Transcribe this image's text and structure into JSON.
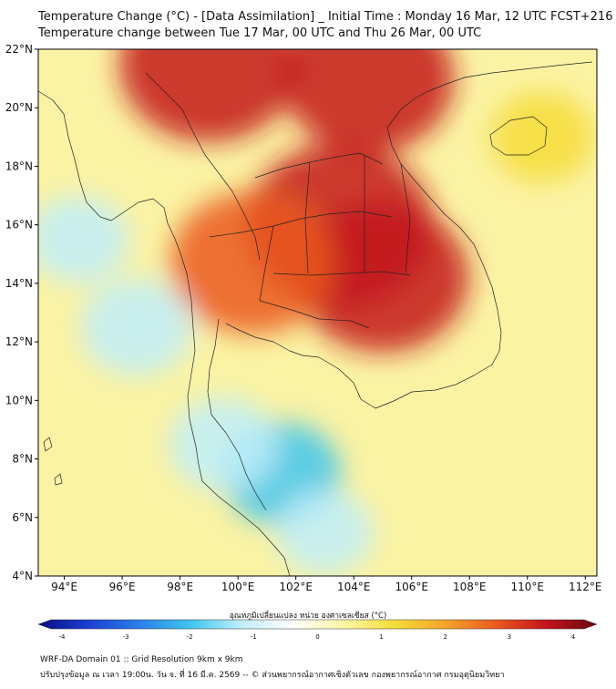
{
  "title_line1": "Temperature Change (°C) - [Data Assimilation] _ Initial Time : Monday 16 Mar, 12 UTC FCST+216",
  "title_line2": "Temperature change between Tue 17 Mar, 00 UTC and Thu 26 Mar, 00 UTC",
  "colorbar": {
    "label": "อุณหภูมิเปลี่ยนแปลง หน่วย องศาเซลเซียส (°C)",
    "min": -4,
    "max": 4,
    "ticks": [
      "-4",
      "-3",
      "-2",
      "-1",
      "0",
      "1",
      "2",
      "3",
      "4"
    ],
    "colors": [
      "#0a0e80",
      "#1b3fd6",
      "#2a7fe8",
      "#3fc6ee",
      "#bfeefa",
      "#ffffff",
      "#fff7a8",
      "#f6dc3a",
      "#f4a52a",
      "#ea5a1e",
      "#c3141a",
      "#6a0710"
    ]
  },
  "axes": {
    "lon_labels": [
      "94°E",
      "96°E",
      "98°E",
      "100°E",
      "102°E",
      "104°E",
      "106°E",
      "108°E",
      "110°E",
      "112°E"
    ],
    "lon_values": [
      94,
      96,
      98,
      100,
      102,
      104,
      106,
      108,
      110,
      112
    ],
    "lat_labels": [
      "4°N",
      "6°N",
      "8°N",
      "10°N",
      "12°N",
      "14°N",
      "16°N",
      "18°N",
      "20°N",
      "22°N"
    ],
    "lat_values": [
      4,
      6,
      8,
      10,
      12,
      14,
      16,
      18,
      20,
      22
    ],
    "lon_range": [
      93.1,
      112.4
    ],
    "lat_range": [
      4.0,
      22.0
    ]
  },
  "field_features": [
    {
      "name": "northern warm anomaly",
      "lon": 99.0,
      "lat": 21.5,
      "value": 3.2
    },
    {
      "name": "north-east warm anomaly",
      "lon": 104.5,
      "lat": 21.0,
      "value": 3.0
    },
    {
      "name": "Khorat plateau warm anomaly",
      "lon": 103.5,
      "lat": 16.0,
      "value": 3.4
    },
    {
      "name": "eastern Thailand warm anomaly",
      "lon": 105.0,
      "lat": 14.2,
      "value": 3.0
    },
    {
      "name": "central plain warm anomaly",
      "lon": 100.5,
      "lat": 14.7,
      "value": 2.8
    },
    {
      "name": "Andaman Sea cool anomaly",
      "lon": 96.5,
      "lat": 12.5,
      "value": -1.4
    },
    {
      "name": "Bay of Bengal cool anomaly",
      "lon": 94.5,
      "lat": 15.5,
      "value": -1.1
    },
    {
      "name": "Gulf of Thailand cool anomaly",
      "lon": 101.5,
      "lat": 7.5,
      "value": -1.6
    },
    {
      "name": "southern cool anomaly",
      "lon": 99.5,
      "lat": 8.5,
      "value": -1.3
    },
    {
      "name": "Malay peninsula cool anomaly",
      "lon": 103.0,
      "lat": 5.5,
      "value": -1.0
    },
    {
      "name": "South China Sea slight warming",
      "lon": 110.5,
      "lat": 19.0,
      "value": 1.2
    }
  ],
  "footer_line1": "WRF-DA Domain 01 :: Grid Resolution 9km x 9km",
  "footer_line2": "ปรับปรุงข้อมูล ณ เวลา 19:00น. วัน จ. ที่ 16 มี.ค. 2569 -- © ส่วนพยากรณ์อากาศเชิงตัวเลข กองพยากรณ์อากาศ กรมอุตุนิยมวิทยา"
}
